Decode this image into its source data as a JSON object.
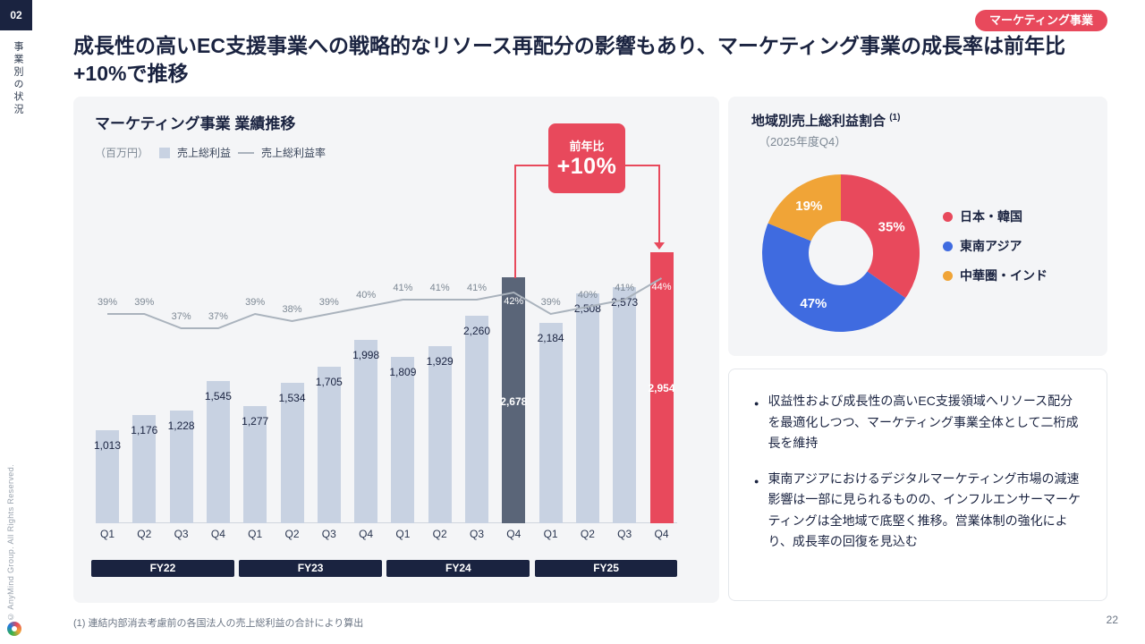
{
  "slide": {
    "section_number": "02",
    "section_label": "事業別の状況",
    "copyright": "© AnyMind Group. All Rights Reserved.",
    "badge": "マーケティング事業",
    "title": "成長性の高いEC支援事業への戦略的なリソース再配分の影響もあり、マーケティング事業の成長率は前年比+10%で推移",
    "footnote": "(1) 連結内部消去考慮前の各国法人の売上総利益の合計により算出",
    "page_number": "22"
  },
  "colors": {
    "accent_red": "#E8495C",
    "navy": "#1A2340",
    "bar_light": "#C8D2E2",
    "bar_dark": "#5A6578",
    "line_gray": "#AAB3BD",
    "panel_bg": "#F4F5F7"
  },
  "chart_data": [
    {
      "type": "bar",
      "title": "マーケティング事業 業績推移",
      "unit_label": "（百万円）",
      "legend": [
        {
          "label": "売上総利益",
          "type": "bar"
        },
        {
          "label": "売上総利益率",
          "type": "line"
        }
      ],
      "categories": [
        "Q1",
        "Q2",
        "Q3",
        "Q4",
        "Q1",
        "Q2",
        "Q3",
        "Q4",
        "Q1",
        "Q2",
        "Q3",
        "Q4",
        "Q1",
        "Q2",
        "Q3",
        "Q4"
      ],
      "fiscal_years": [
        "FY22",
        "FY23",
        "FY24",
        "FY25"
      ],
      "series": [
        {
          "name": "売上総利益",
          "values": [
            1013,
            1176,
            1228,
            1545,
            1277,
            1534,
            1705,
            1998,
            1809,
            1929,
            2260,
            2678,
            2184,
            2508,
            2573,
            2954
          ]
        },
        {
          "name": "売上総利益率",
          "unit": "%",
          "values": [
            39,
            39,
            37,
            37,
            39,
            38,
            39,
            40,
            41,
            41,
            41,
            42,
            39,
            40,
            41,
            44
          ]
        }
      ],
      "highlight": {
        "dark_index": 11,
        "red_index": 15
      },
      "callout": {
        "line1": "前年比",
        "line2": "+10%"
      },
      "ylim": [
        0,
        3020
      ],
      "legend_position": "top-left",
      "grid": false
    },
    {
      "type": "pie",
      "title": "地域別売上総利益割合",
      "title_sup": "(1)",
      "subtitle": "（2025年度Q4）",
      "slices": [
        {
          "label": "日本・韓国",
          "value": 35,
          "pct_label": "35%",
          "color": "#E8495C"
        },
        {
          "label": "東南アジア",
          "value": 47,
          "pct_label": "47%",
          "color": "#3F6BE0"
        },
        {
          "label": "中華圏・インド",
          "value": 19,
          "pct_label": "19%",
          "color": "#F0A437"
        }
      ],
      "legend_position": "right"
    }
  ],
  "notes": {
    "bullets": [
      "収益性および成長性の高いEC支援領域へリソース配分を最適化しつつ、マーケティング事業全体として二桁成長を維持",
      "東南アジアにおけるデジタルマーケティング市場の減速影響は一部に見られるものの、インフルエンサーマーケティングは全地域で底堅く推移。営業体制の強化により、成長率の回復を見込む"
    ]
  }
}
